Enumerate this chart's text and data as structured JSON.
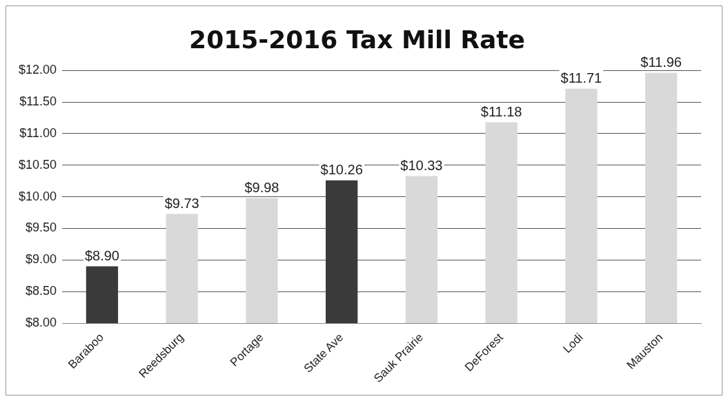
{
  "chart_data": {
    "type": "bar",
    "title": "2015-2016 Tax Mill Rate",
    "categories": [
      "Baraboo",
      "Reedsburg",
      "Portage",
      "State Ave",
      "Sauk Prairie",
      "DeForest",
      "Lodi",
      "Mauston"
    ],
    "values": [
      8.9,
      9.73,
      9.98,
      10.26,
      10.33,
      11.18,
      11.71,
      11.96
    ],
    "colors": [
      "#3a3a3a",
      "#d9d9d9",
      "#d9d9d9",
      "#3a3a3a",
      "#d9d9d9",
      "#d9d9d9",
      "#d9d9d9",
      "#d9d9d9"
    ],
    "value_labels": [
      "$8.90",
      "$9.73",
      "$9.98",
      "$10.26",
      "$10.33",
      "$11.18",
      "$11.71",
      "$11.96"
    ],
    "ylim": [
      8,
      12
    ],
    "yticks": [
      {
        "value": 8,
        "label": "$8.00"
      },
      {
        "value": 8.5,
        "label": "$8.50"
      },
      {
        "value": 9,
        "label": "$9.00"
      },
      {
        "value": 9.5,
        "label": "$9.50"
      },
      {
        "value": 10,
        "label": "$10.00"
      },
      {
        "value": 10.5,
        "label": "$10.50"
      },
      {
        "value": 11,
        "label": "$11.00"
      },
      {
        "value": 11.5,
        "label": "$11.50"
      },
      {
        "value": 12,
        "label": "$12.00"
      }
    ],
    "grid": "y",
    "legend": false
  }
}
